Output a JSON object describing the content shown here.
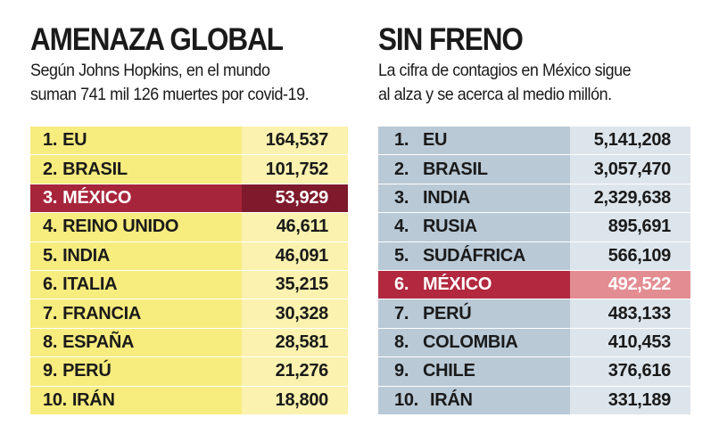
{
  "chart_data": [
    {
      "type": "table",
      "title": "AMENAZA GLOBAL",
      "subtitle_lines": [
        "Según Johns Hopkins, en el mundo",
        "suman 741 mil 126 muertes por covid-19."
      ],
      "rows": [
        {
          "rank": "1.",
          "country": "EU",
          "value": "164,537"
        },
        {
          "rank": "2.",
          "country": "BRASIL",
          "value": "101,752"
        },
        {
          "rank": "3.",
          "country": "MÉXICO",
          "value": "53,929"
        },
        {
          "rank": "4.",
          "country": "REINO UNIDO",
          "value": "46,611"
        },
        {
          "rank": "5.",
          "country": "INDIA",
          "value": "46,091"
        },
        {
          "rank": "6.",
          "country": "ITALIA",
          "value": "35,215"
        },
        {
          "rank": "7.",
          "country": "FRANCIA",
          "value": "30,328"
        },
        {
          "rank": "8.",
          "country": "ESPAÑA",
          "value": "28,581"
        },
        {
          "rank": "9.",
          "country": "PERÚ",
          "value": "21,276"
        },
        {
          "rank": "10.",
          "country": "IRÁN",
          "value": "18,800"
        }
      ],
      "highlight_country": "MÉXICO",
      "colors": {
        "row_bg": "#f7ec7e",
        "value_bg": "#faf2ae",
        "highlight": "#a7253b",
        "highlight_value": "#7e1a2c"
      }
    },
    {
      "type": "table",
      "title": "SIN FRENO",
      "subtitle_lines": [
        "La cifra de contagios en México sigue",
        "al alza y se acerca al medio millón."
      ],
      "rows": [
        {
          "rank": "1.",
          "country": "EU",
          "value": "5,141,208"
        },
        {
          "rank": "2.",
          "country": "BRASIL",
          "value": "3,057,470"
        },
        {
          "rank": "3.",
          "country": "INDIA",
          "value": "2,329,638"
        },
        {
          "rank": "4.",
          "country": "RUSIA",
          "value": "895,691"
        },
        {
          "rank": "5.",
          "country": "SUDÁFRICA",
          "value": "566,109"
        },
        {
          "rank": "6.",
          "country": "MÉXICO",
          "value": "492,522"
        },
        {
          "rank": "7.",
          "country": "PERÚ",
          "value": "483,133"
        },
        {
          "rank": "8.",
          "country": "COLOMBIA",
          "value": "410,453"
        },
        {
          "rank": "9.",
          "country": "CHILE",
          "value": "376,616"
        },
        {
          "rank": "10.",
          "country": "IRÁN",
          "value": "331,189"
        }
      ],
      "highlight_country": "MÉXICO",
      "colors": {
        "row_bg": "#b9c9d6",
        "value_bg": "#dde5ec",
        "highlight": "#b1283f",
        "highlight_value": "#e38d93"
      }
    }
  ]
}
